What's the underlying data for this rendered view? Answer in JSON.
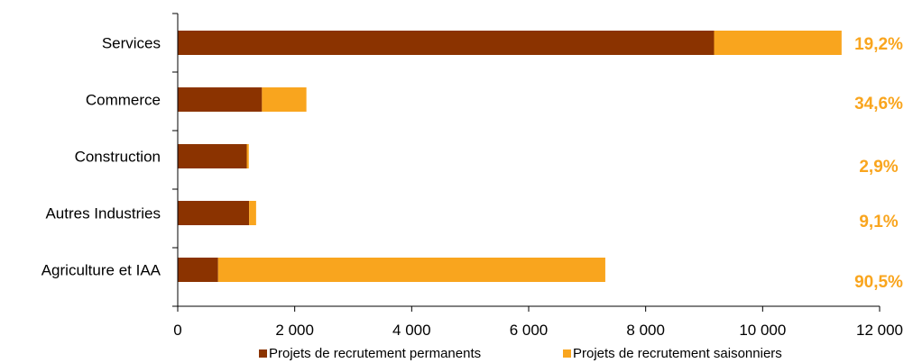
{
  "chart_data": {
    "type": "bar",
    "orientation": "horizontal",
    "stacked": true,
    "categories": [
      "Services",
      "Commerce",
      "Construction",
      "Autres Industries",
      "Agriculture et IAA"
    ],
    "series": [
      {
        "name": "Projets de recrutement permanents",
        "values": [
          9170,
          1440,
          1180,
          1220,
          690
        ],
        "color": "#8B3300"
      },
      {
        "name": "Projets de recrutement saisonniers",
        "values": [
          2180,
          760,
          35,
          120,
          6620
        ],
        "color": "#F9A51E"
      }
    ],
    "share_labels": [
      "19,2%",
      "34,6%",
      "2,9%",
      "9,1%",
      "90,5%"
    ],
    "share_label_color": "#F9A51E",
    "xlim": [
      0,
      12000
    ],
    "xticks": [
      0,
      2000,
      4000,
      6000,
      8000,
      10000,
      12000
    ],
    "xtick_labels": [
      "0",
      "2 000",
      "4 000",
      "6 000",
      "8 000",
      "10 000",
      "12 000"
    ],
    "grid": false,
    "legend_position": "bottom"
  }
}
